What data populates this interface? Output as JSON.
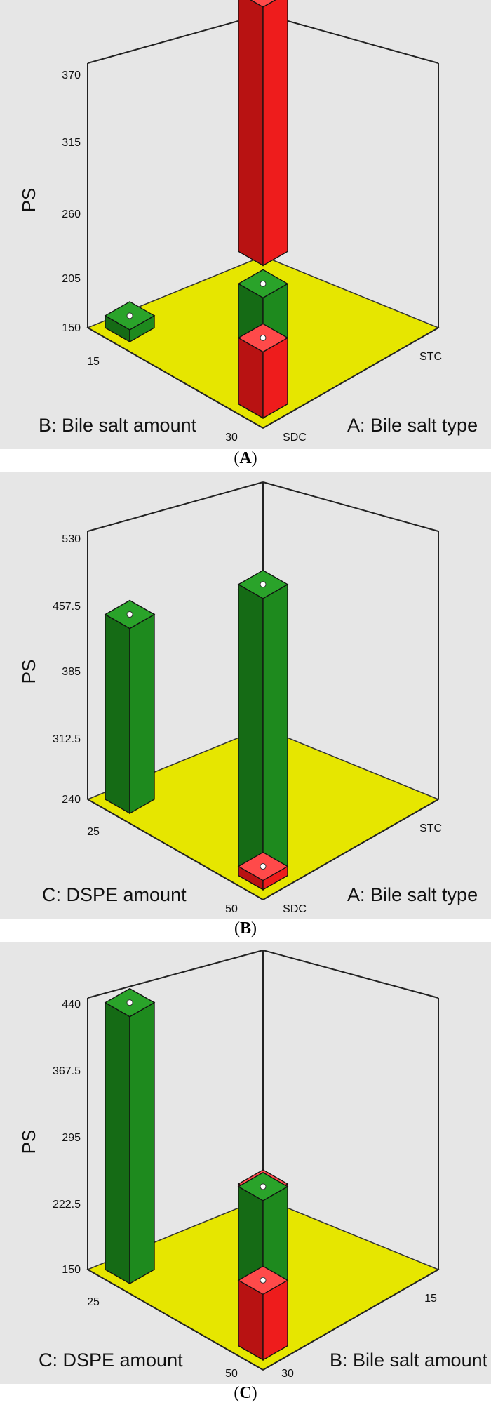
{
  "chart_data": [
    {
      "type": "bar",
      "panel_label": "A",
      "ylabel": "PS",
      "zlim": [
        150,
        370
      ],
      "zticks": [
        "150",
        "205",
        "260",
        "315",
        "370"
      ],
      "x_factor": "A: Bile salt type",
      "x_levels": [
        "SDC",
        "STC"
      ],
      "y_factor": "B: Bile salt amount",
      "y_levels": [
        "15",
        "30"
      ],
      "bars": [
        {
          "a": "SDC",
          "b": "15",
          "value": 160,
          "color": "green"
        },
        {
          "a": "SDC",
          "b": "30",
          "value": 250,
          "color": "green"
        },
        {
          "a": "SDC",
          "b": "30",
          "value": 205,
          "color": "red"
        },
        {
          "a": "STC",
          "b": "15",
          "value": 365,
          "color": "red"
        }
      ]
    },
    {
      "type": "bar",
      "panel_label": "B",
      "ylabel": "PS",
      "zlim": [
        240,
        530
      ],
      "zticks": [
        "240",
        "312.5",
        "385",
        "457.5",
        "530"
      ],
      "x_factor": "A: Bile salt type",
      "x_levels": [
        "SDC",
        "STC"
      ],
      "y_factor": "C: DSPE amount",
      "y_levels": [
        "25",
        "50"
      ],
      "bars": [
        {
          "a": "SDC",
          "c": "25",
          "value": 440,
          "color": "green"
        },
        {
          "a": "SDC",
          "c": "50",
          "value": 555,
          "color": "green"
        },
        {
          "a": "SDC",
          "c": "50",
          "value": 250,
          "color": "red"
        },
        {
          "a": "STC",
          "c": "25",
          "value": 385,
          "color": "red"
        }
      ]
    },
    {
      "type": "bar",
      "panel_label": "C",
      "ylabel": "PS",
      "zlim": [
        150,
        440
      ],
      "zticks": [
        "150",
        "222.5",
        "295",
        "367.5",
        "440"
      ],
      "x_factor": "B: Bile salt amount",
      "x_levels": [
        "30",
        "15"
      ],
      "y_factor": "C: DSPE amount",
      "y_levels": [
        "25",
        "50"
      ],
      "bars": [
        {
          "b": "30",
          "c": "25",
          "value": 435,
          "color": "green"
        },
        {
          "b": "30",
          "c": "50",
          "value": 320,
          "color": "green"
        },
        {
          "b": "30",
          "c": "50",
          "value": 220,
          "color": "red"
        },
        {
          "b": "15",
          "c": "25",
          "value": 160,
          "color": "red"
        }
      ]
    }
  ],
  "captions": [
    "A",
    "B",
    "C"
  ],
  "colors": {
    "background": "#e6e6e6",
    "floor": "#e8e800",
    "green": "#1e8a1e",
    "red": "#ee1c1c"
  }
}
